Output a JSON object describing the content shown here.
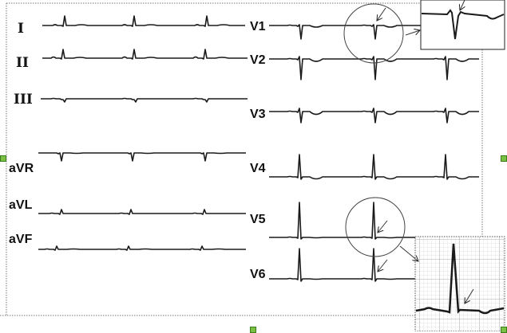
{
  "figure": {
    "limb_leads": [
      "I",
      "II",
      "III",
      "aVR",
      "aVL",
      "aVF"
    ],
    "chest_leads": [
      "V1",
      "V2",
      "V3",
      "V4",
      "V5",
      "V6"
    ],
    "insets": [
      {
        "lead": "V1",
        "feature": "arrow marking notch after QRS"
      },
      {
        "lead": "V5",
        "feature": "arrow marking ST segment after R wave"
      }
    ],
    "trace_color": "#1a1a1a",
    "selection_handle_color": "#7ac143"
  }
}
